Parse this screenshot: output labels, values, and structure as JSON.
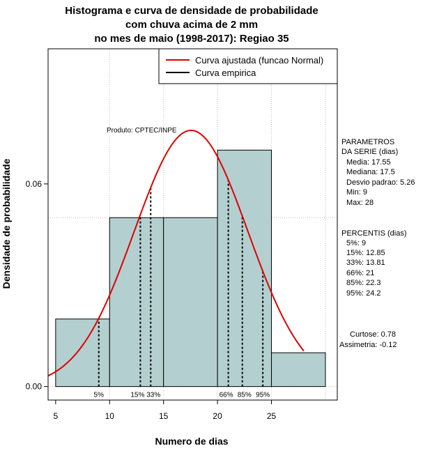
{
  "chart_data": {
    "type": "histogram",
    "title_lines": [
      "Histograma e curva de densidade de probabilidade",
      "com chuva acima de 2 mm",
      "no mes de maio (1998-2017): Regiao 35"
    ],
    "xlabel": "Numero de dias",
    "ylabel": "Densidade de probabilidade",
    "xlim": [
      4.3,
      31.1
    ],
    "ylim": [
      -0.004,
      0.1
    ],
    "x_ticks": [
      5,
      10,
      15,
      20,
      25
    ],
    "y_ticks": [
      0,
      0.06
    ],
    "y_tick_labels": [
      "0.00",
      "0.06"
    ],
    "grid_x": [
      10,
      15,
      20,
      25,
      30
    ],
    "grid_y": [
      0,
      0.05,
      0.1
    ],
    "bins": [
      {
        "from": 5,
        "to": 10,
        "density": 0.02
      },
      {
        "from": 10,
        "to": 15,
        "density": 0.05
      },
      {
        "from": 15,
        "to": 20,
        "density": 0.05
      },
      {
        "from": 20,
        "to": 25,
        "density": 0.07
      },
      {
        "from": 25,
        "to": 30,
        "density": 0.01
      }
    ],
    "normal_fit": {
      "mean": 17.55,
      "sd": 5.26,
      "from": 4.3,
      "to": 28,
      "color": "#dd0000"
    },
    "bar_fill": "#b4cfcf",
    "percentiles": [
      {
        "label": "5%",
        "value": 9
      },
      {
        "label": "15%",
        "value": 12.85
      },
      {
        "label": "33%",
        "value": 13.81
      },
      {
        "label": "66%",
        "value": 21
      },
      {
        "label": "85%",
        "value": 22.3
      },
      {
        "label": "95%",
        "value": 24.2
      }
    ],
    "legend": [
      {
        "label": "Curva ajustada (funcao Normal)",
        "color": "#dd0000"
      },
      {
        "label": "Curva empirica",
        "color": "#000000"
      }
    ],
    "legend_position": "top-right",
    "credit": "Produto: CPTEC/INPE"
  },
  "side_panel": {
    "params_title": [
      "PARAMETROS",
      "DA SERIE (dias)"
    ],
    "params": [
      "Media: 17.55",
      "Mediana: 17.5",
      "Desvio padrao: 5.26",
      "Min: 9",
      "Max: 28"
    ],
    "pct_title": "PERCENTIS (dias)",
    "pcts": [
      "5%: 9",
      "15%: 12.85",
      "33%: 13.81",
      "66%: 21",
      "85%: 22.3",
      "95%: 24.2"
    ],
    "stats": [
      "Curtose: 0.78",
      "Assimetria: -0.12"
    ]
  }
}
